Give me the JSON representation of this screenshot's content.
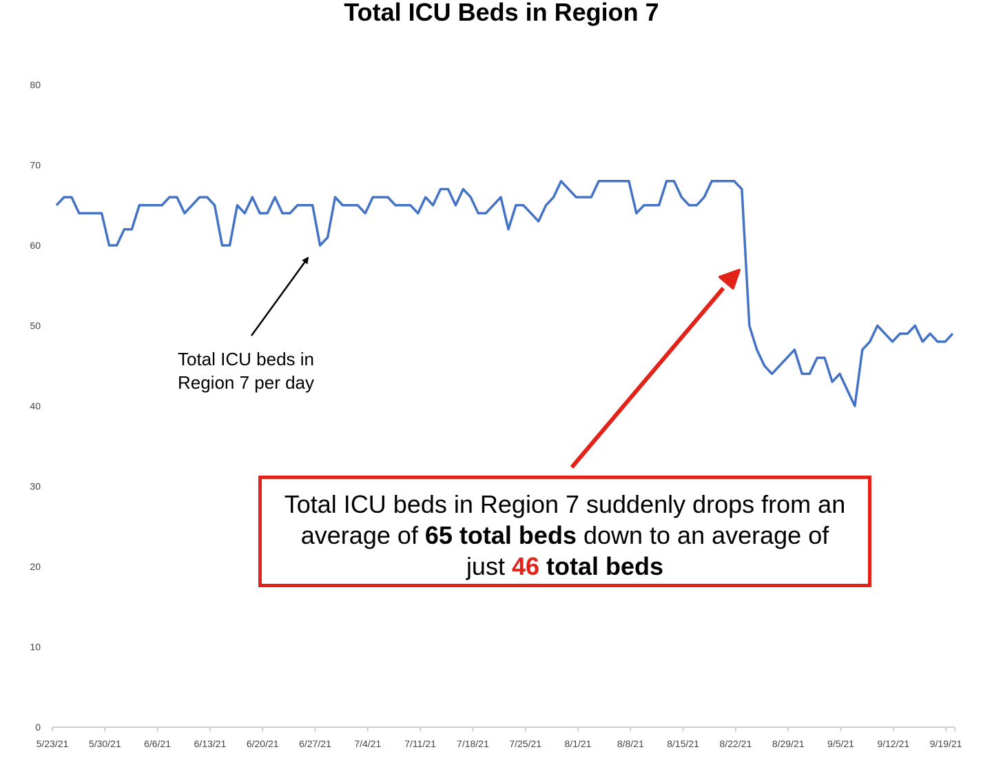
{
  "chart_data": {
    "type": "line",
    "title": "Total ICU Beds in Region 7",
    "xlabel": "",
    "ylabel": "",
    "ylim": [
      0,
      80
    ],
    "yticks": [
      0,
      10,
      20,
      30,
      40,
      50,
      60,
      70,
      80
    ],
    "grid": false,
    "line_color": "#4472c4",
    "x_tick_labels": [
      "5/23/21",
      "5/30/21",
      "6/6/21",
      "6/13/21",
      "6/20/21",
      "6/27/21",
      "7/4/21",
      "7/11/21",
      "7/18/21",
      "7/25/21",
      "8/1/21",
      "8/8/21",
      "8/15/21",
      "8/22/21",
      "8/29/21",
      "9/5/21",
      "9/12/21",
      "9/19/21"
    ],
    "x_start": "5/23/21",
    "series": [
      {
        "values": [
          65,
          66,
          66,
          64,
          64,
          64,
          64,
          60,
          60,
          62,
          62,
          65,
          65,
          65,
          65,
          66,
          66,
          64,
          65,
          66,
          66,
          65,
          60,
          60,
          65,
          64,
          66,
          64,
          64,
          66,
          64,
          64,
          65,
          65,
          65,
          60,
          61,
          66,
          65,
          65,
          65,
          64,
          66,
          66,
          66,
          65,
          65,
          65,
          64,
          66,
          65,
          67,
          67,
          65,
          67,
          66,
          64,
          64,
          65,
          66,
          62,
          65,
          65,
          64,
          63,
          65,
          66,
          68,
          67,
          66,
          66,
          66,
          68,
          68,
          68,
          68,
          68,
          64,
          65,
          65,
          65,
          68,
          68,
          66,
          65,
          65,
          66,
          68,
          68,
          68,
          68,
          67,
          50,
          47,
          45,
          44,
          45,
          46,
          47,
          44,
          44,
          46,
          46,
          43,
          44,
          42,
          40,
          47,
          48,
          50,
          49,
          48,
          49,
          49,
          50,
          48,
          49,
          48,
          48,
          49
        ]
      }
    ]
  },
  "annotations": {
    "left_line1": "Total ICU beds in",
    "left_line2": "Region 7 per day",
    "box_text_1": "Total ICU beds in Region 7 suddenly drops from an",
    "box_text_2a": "average of ",
    "box_text_2b": "65 total beds",
    "box_text_2c": " down to an average of",
    "box_text_3a": "just ",
    "box_text_3b": "46",
    "box_text_3c": " total beds",
    "arrow_black_color": "#000000",
    "arrow_red_color": "#e1231a"
  }
}
